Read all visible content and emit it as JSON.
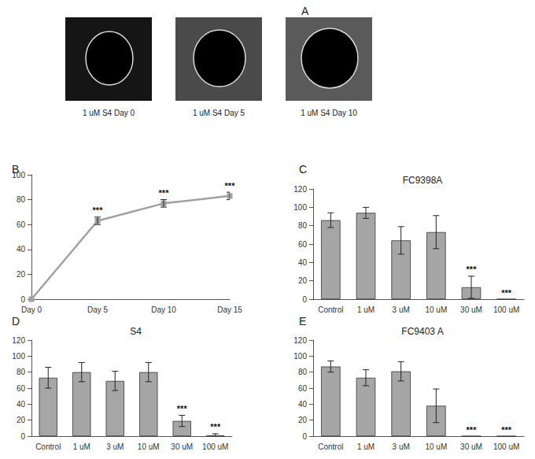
{
  "panel_a": {
    "panel_label": "A",
    "captions": [
      "1 uM S4 Day 0",
      "1 uM S4 Day 5",
      "1 uM S4 Day 10"
    ]
  },
  "chart_data": [
    {
      "panel_label": "B",
      "type": "line",
      "categories": [
        "Day 0",
        "Day 5",
        "Day 10",
        "Day 15"
      ],
      "values": [
        0,
        63,
        77,
        83
      ],
      "errors": [
        0,
        3,
        3,
        3
      ],
      "significance": [
        null,
        "***",
        "***",
        "***"
      ],
      "color": "#a0a0a0",
      "marker": "square",
      "ylim": [
        0,
        100
      ],
      "yticks": [
        0,
        20,
        40,
        60,
        80,
        100
      ],
      "grid": false
    },
    {
      "panel_label": "C",
      "type": "bar",
      "title": "FC9398A",
      "categories": [
        "Control",
        "1 uM",
        "3 uM",
        "10 uM",
        "30 uM",
        "100 uM"
      ],
      "values": [
        86,
        94,
        64,
        73,
        13,
        0
      ],
      "errors": [
        8,
        6,
        15,
        18,
        12,
        0
      ],
      "significance": [
        null,
        null,
        null,
        null,
        "***",
        "***"
      ],
      "color": "#a6a6a6",
      "ylim": [
        0,
        120
      ],
      "yticks": [
        0,
        20,
        40,
        60,
        80,
        100,
        120
      ],
      "grid": false
    },
    {
      "panel_label": "D",
      "type": "bar",
      "title": "S4",
      "categories": [
        "Control",
        "1 uM",
        "3 uM",
        "10 uM",
        "30 uM",
        "100 uM"
      ],
      "values": [
        73,
        80,
        69,
        80,
        19,
        1
      ],
      "errors": [
        13,
        12,
        12,
        12,
        7,
        2
      ],
      "significance": [
        null,
        null,
        null,
        null,
        "***",
        "***"
      ],
      "color": "#a6a6a6",
      "ylim": [
        0,
        120
      ],
      "yticks": [
        0,
        20,
        40,
        60,
        80,
        100,
        120
      ],
      "grid": false
    },
    {
      "panel_label": "E",
      "type": "bar",
      "title": "FC9403 A",
      "categories": [
        "Control",
        "1 uM",
        "3 uM",
        "10 uM",
        "30 uM",
        "100 uM"
      ],
      "values": [
        87,
        73,
        81,
        38,
        0,
        0
      ],
      "errors": [
        7,
        10,
        12,
        21,
        0,
        0
      ],
      "significance": [
        null,
        null,
        null,
        null,
        "***",
        "***"
      ],
      "color": "#a6a6a6",
      "ylim": [
        0,
        120
      ],
      "yticks": [
        0,
        20,
        40,
        60,
        80,
        100,
        120
      ],
      "grid": false
    }
  ]
}
